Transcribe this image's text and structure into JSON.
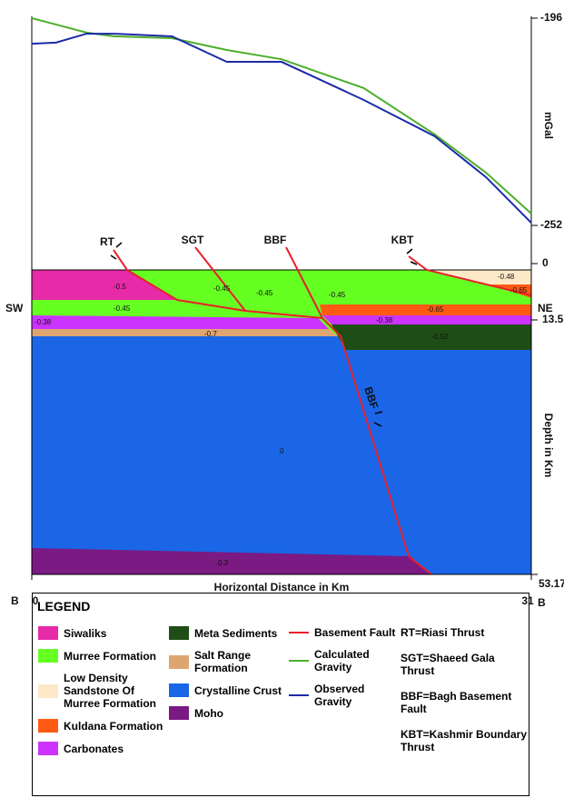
{
  "chart_data": {
    "type": "line",
    "y_label": "mGal",
    "x_label": "Horizontal Distance in Km",
    "x": [
      0,
      1.5,
      3.4,
      5.1,
      8.7,
      12.1,
      15.5,
      20.6,
      25,
      28.2,
      31
    ],
    "xlim": [
      0,
      31
    ],
    "xticks": [
      0,
      31
    ],
    "ylim": [
      -252,
      -196
    ],
    "yticks": [
      -196,
      -252
    ],
    "series": [
      {
        "name": "Calculated Gravity",
        "color": "#4caf2a",
        "values": [
          -196,
          -197.7,
          -199.9,
          -200.9,
          -201.4,
          -204.6,
          -207.1,
          -214.9,
          -227.4,
          -237.8,
          -248.8
        ]
      },
      {
        "name": "Observed Gravity",
        "color": "#1c2aa8",
        "values": [
          -202.9,
          -202.6,
          -200.2,
          -200.2,
          -200.9,
          -207.8,
          -207.8,
          -218.1,
          -227.9,
          -239,
          -251.3
        ]
      }
    ]
  },
  "section": {
    "left_label": "SW",
    "right_label": "NE",
    "profile_start": "B",
    "profile_end": "B",
    "depth_label": "Depth in Km",
    "depth_ticks": [
      0,
      13.5,
      53.17
    ],
    "faults": [
      "RT",
      "SGT",
      "BBF",
      "KBT"
    ],
    "fault_on_section": "BBF",
    "density_labels": [
      -0.5,
      -0.45,
      -0.45,
      -0.45,
      -0.45,
      -0.65,
      -0.38,
      -0.38,
      -0.7,
      -0.52,
      0,
      0.3,
      -0.48,
      -0.65
    ]
  },
  "legend": {
    "title": "LEGEND",
    "units": [
      {
        "label": "Siwaliks",
        "color": "#e62aa8"
      },
      {
        "label": "Murree Formation",
        "color": "#66ff22"
      },
      {
        "label": "Low Density Sandstone Of Murree Formation",
        "color": "#fde9c8"
      },
      {
        "label": "Kuldana Formation",
        "color": "#ff5a14"
      },
      {
        "label": "Carbonates",
        "color": "#cc33ff"
      },
      {
        "label": "Meta Sediments",
        "color": "#1f4d16"
      },
      {
        "label": "Salt Range Formation",
        "color": "#dea571"
      },
      {
        "label": "Crystalline Crust",
        "color": "#1a66e6"
      },
      {
        "label": "Moho",
        "color": "#7a1a82"
      }
    ],
    "fault": {
      "label": "Basement Fault",
      "color": "#e8202a"
    },
    "abbreviations": [
      "RT=Riasi Thrust",
      "SGT=Shaeed Gala Thrust",
      "BBF=Bagh Basement Fault",
      "KBT=Kashmir Boundary Thrust"
    ]
  }
}
